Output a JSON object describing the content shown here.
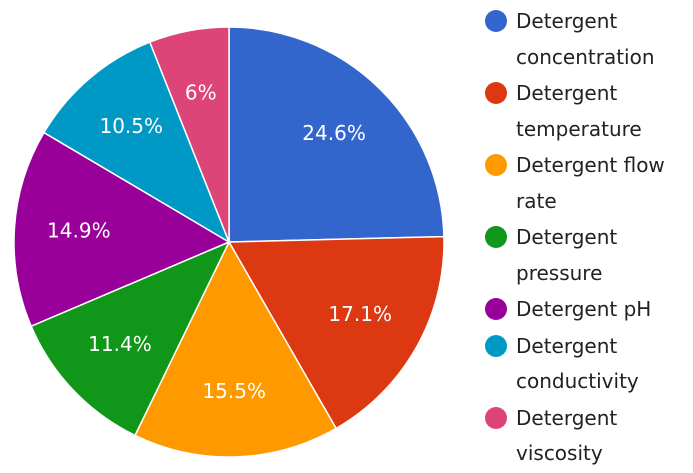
{
  "chart_data": {
    "type": "pie",
    "categories": [
      "Detergent concentration",
      "Detergent temperature",
      "Detergent flow rate",
      "Detergent pressure",
      "Detergent pH",
      "Detergent conductivity",
      "Detergent viscosity"
    ],
    "values": [
      24.6,
      17.1,
      15.5,
      11.4,
      14.9,
      10.5,
      6
    ],
    "value_labels": [
      "24.6%",
      "17.1%",
      "15.5%",
      "11.4%",
      "14.9%",
      "10.5%",
      "6%"
    ],
    "colors": [
      "#3366cc",
      "#dc3912",
      "#ff9900",
      "#109618",
      "#990099",
      "#0099c6",
      "#dd4477"
    ],
    "legend": "right"
  }
}
